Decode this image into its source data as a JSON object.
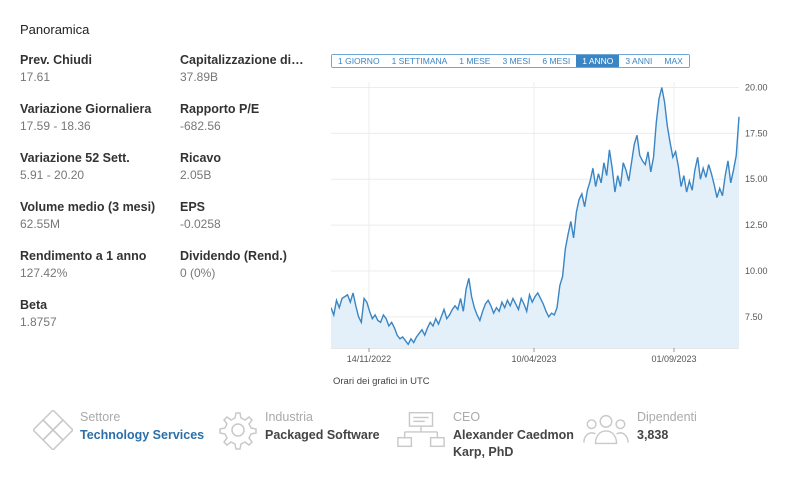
{
  "overview": {
    "title": "Panoramica",
    "metrics": [
      {
        "label": "Prev. Chiudi",
        "value": "17.61"
      },
      {
        "label": "Capitalizzazione di ...",
        "value": "37.89B"
      },
      {
        "label": "Variazione Giornaliera",
        "value": "17.59 - 18.36"
      },
      {
        "label": "Rapporto P/E",
        "value": "-682.56"
      },
      {
        "label": "Variazione 52 Sett.",
        "value": "5.91 - 20.20"
      },
      {
        "label": "Ricavo",
        "value": "2.05B"
      },
      {
        "label": "Volume medio (3 mesi)",
        "value": "62.55M"
      },
      {
        "label": "EPS",
        "value": "-0.0258"
      },
      {
        "label": "Rendimento a 1 anno",
        "value": "127.42%"
      },
      {
        "label": "Dividendo (Rend.)",
        "value": "0 (0%)"
      },
      {
        "label": "Beta",
        "value": "1.8757"
      }
    ]
  },
  "ranges": {
    "items": [
      "1 GIORNO",
      "1 SETTIMANA",
      "1 MESE",
      "3 MESI",
      "6 MESI",
      "1 ANNO",
      "3 ANNI",
      "MAX"
    ],
    "active": "1 ANNO"
  },
  "chart_note": "Orari dei grafici in UTC",
  "colors": {
    "line": "#3a85c4",
    "fill": "#e3f0f9",
    "accent": "#2c6fa8"
  },
  "chart_data": {
    "type": "area",
    "x_ticks": [
      "14/11/2022",
      "10/04/2023",
      "01/09/2023"
    ],
    "y_ticks": [
      "20.00",
      "17.50",
      "15.00",
      "12.50",
      "10.00",
      "7.50"
    ],
    "ylim": [
      5.8,
      20.3
    ],
    "grid": true,
    "values": [
      8.0,
      7.6,
      8.4,
      8.0,
      8.5,
      8.6,
      8.7,
      8.3,
      8.8,
      8.1,
      7.5,
      7.2,
      8.5,
      8.3,
      7.8,
      7.4,
      7.6,
      7.3,
      7.2,
      7.6,
      7.4,
      7.0,
      7.2,
      6.9,
      6.5,
      6.3,
      6.4,
      6.2,
      6.0,
      6.3,
      6.1,
      6.4,
      6.6,
      6.8,
      6.5,
      6.9,
      7.2,
      7.0,
      7.4,
      7.1,
      7.5,
      7.9,
      7.4,
      7.6,
      7.9,
      8.1,
      7.9,
      8.5,
      7.8,
      9.0,
      9.6,
      8.6,
      8.0,
      7.6,
      7.3,
      7.8,
      8.2,
      8.4,
      8.1,
      7.7,
      8.0,
      7.8,
      8.3,
      8.0,
      8.4,
      8.1,
      8.5,
      8.2,
      7.9,
      8.5,
      8.2,
      7.8,
      8.7,
      8.3,
      8.6,
      8.8,
      8.5,
      8.2,
      7.8,
      7.5,
      7.7,
      7.6,
      8.0,
      9.2,
      9.7,
      11.2,
      12.0,
      12.7,
      11.8,
      13.2,
      13.9,
      14.2,
      13.5,
      14.4,
      14.9,
      15.6,
      14.6,
      15.3,
      14.8,
      15.9,
      15.2,
      16.6,
      15.6,
      14.3,
      15.2,
      14.6,
      15.9,
      15.5,
      14.9,
      15.9,
      16.9,
      17.4,
      16.3,
      16.0,
      15.8,
      16.5,
      15.4,
      16.2,
      18.1,
      19.4,
      20.0,
      19.2,
      17.9,
      17.0,
      16.2,
      16.5,
      15.7,
      14.6,
      15.2,
      14.3,
      14.9,
      14.4,
      15.5,
      16.2,
      15.0,
      15.6,
      15.1,
      15.8,
      15.3,
      14.7,
      14.0,
      14.5,
      14.1,
      15.2,
      16.0,
      14.8,
      15.5,
      16.3,
      18.4
    ]
  },
  "info": {
    "sector": {
      "label": "Settore",
      "value": "Technology Services"
    },
    "industry": {
      "label": "Industria",
      "value": "Packaged Software"
    },
    "ceo": {
      "label": "CEO",
      "value": "Alexander Caedmon Karp, PhD"
    },
    "employees": {
      "label": "Dipendenti",
      "value": "3,838"
    }
  }
}
